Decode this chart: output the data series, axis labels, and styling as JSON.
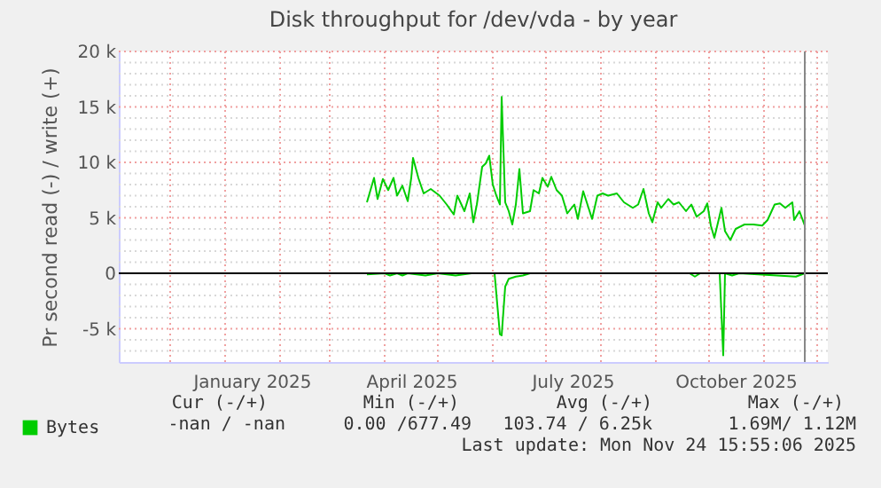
{
  "chart_data": {
    "type": "line",
    "title": "Disk throughput for /dev/vda - by year",
    "ylabel": "Pr second read (-) / write (+)",
    "xlim": [
      "2024-11-02",
      "2025-12-07"
    ],
    "xticks": [
      {
        "value": "2024-12-01",
        "label": null
      },
      {
        "value": "2025-01-01",
        "label": null
      },
      {
        "value": "2025-01-16",
        "label": "January 2025"
      },
      {
        "value": "2025-02-01",
        "label": null
      },
      {
        "value": "2025-03-01",
        "label": null
      },
      {
        "value": "2025-04-01",
        "label": null
      },
      {
        "value": "2025-04-16",
        "label": "April 2025"
      },
      {
        "value": "2025-05-01",
        "label": null
      },
      {
        "value": "2025-06-01",
        "label": null
      },
      {
        "value": "2025-07-01",
        "label": null
      },
      {
        "value": "2025-07-16",
        "label": "July 2025"
      },
      {
        "value": "2025-08-01",
        "label": null
      },
      {
        "value": "2025-09-01",
        "label": null
      },
      {
        "value": "2025-10-01",
        "label": null
      },
      {
        "value": "2025-10-16",
        "label": "October 2025"
      },
      {
        "value": "2025-11-01",
        "label": null
      },
      {
        "value": "2025-12-01",
        "label": null
      }
    ],
    "ylim": [
      -8000,
      20000
    ],
    "yticks": [
      {
        "value": -7000,
        "label": null
      },
      {
        "value": -6000,
        "label": null
      },
      {
        "value": -5000,
        "label": "-5 k"
      },
      {
        "value": -4000,
        "label": null
      },
      {
        "value": -3000,
        "label": null
      },
      {
        "value": -2000,
        "label": null
      },
      {
        "value": -1000,
        "label": null
      },
      {
        "value": 0,
        "label": "0"
      },
      {
        "value": 1000,
        "label": null
      },
      {
        "value": 2000,
        "label": null
      },
      {
        "value": 3000,
        "label": null
      },
      {
        "value": 4000,
        "label": null
      },
      {
        "value": 5000,
        "label": "5 k"
      },
      {
        "value": 6000,
        "label": null
      },
      {
        "value": 7000,
        "label": null
      },
      {
        "value": 8000,
        "label": null
      },
      {
        "value": 9000,
        "label": null
      },
      {
        "value": 10000,
        "label": "10 k"
      },
      {
        "value": 11000,
        "label": null
      },
      {
        "value": 12000,
        "label": null
      },
      {
        "value": 13000,
        "label": null
      },
      {
        "value": 14000,
        "label": null
      },
      {
        "value": 15000,
        "label": "15 k"
      },
      {
        "value": 16000,
        "label": null
      },
      {
        "value": 17000,
        "label": null
      },
      {
        "value": 18000,
        "label": null
      },
      {
        "value": 19000,
        "label": null
      },
      {
        "value": 20000,
        "label": "20 k"
      }
    ],
    "grid": true,
    "legend": "bottom left",
    "marker": "none",
    "line_style": "solid",
    "series": [
      {
        "name": "Bytes",
        "color": "#00cc00",
        "x": [
          "2025-03-22",
          "2025-03-26",
          "2025-03-28",
          "2025-03-31",
          "2025-04-03",
          "2025-04-06",
          "2025-04-08",
          "2025-04-11",
          "2025-04-14",
          "2025-04-16",
          "2025-04-17",
          "2025-04-20",
          "2025-04-23",
          "2025-04-27",
          "2025-05-02",
          "2025-05-06",
          "2025-05-10",
          "2025-05-12",
          "2025-05-16",
          "2025-05-19",
          "2025-05-21",
          "2025-05-23",
          "2025-05-26",
          "2025-05-28",
          "2025-05-30",
          "2025-06-01",
          "2025-06-03",
          "2025-06-05",
          "2025-06-06",
          "2025-06-08",
          "2025-06-10",
          "2025-06-12",
          "2025-06-14",
          "2025-06-16",
          "2025-06-18",
          "2025-06-22",
          "2025-06-24",
          "2025-06-27",
          "2025-06-29",
          "2025-07-02",
          "2025-07-04",
          "2025-07-07",
          "2025-07-10",
          "2025-07-13",
          "2025-07-17",
          "2025-07-19",
          "2025-07-22",
          "2025-07-24",
          "2025-07-27",
          "2025-07-30",
          "2025-08-02",
          "2025-08-05",
          "2025-08-10",
          "2025-08-14",
          "2025-08-19",
          "2025-08-22",
          "2025-08-25",
          "2025-08-28",
          "2025-08-30",
          "2025-09-02",
          "2025-09-04",
          "2025-09-08",
          "2025-09-11",
          "2025-09-14",
          "2025-09-18",
          "2025-09-21",
          "2025-09-24",
          "2025-09-28",
          "2025-09-30",
          "2025-10-02",
          "2025-10-04",
          "2025-10-08",
          "2025-10-10",
          "2025-10-13",
          "2025-10-16",
          "2025-10-21",
          "2025-10-26",
          "2025-10-31",
          "2025-11-03",
          "2025-11-07",
          "2025-11-10",
          "2025-11-13",
          "2025-11-17",
          "2025-11-18",
          "2025-11-21",
          "2025-11-24"
        ],
        "values": [
          6400,
          8600,
          6700,
          8500,
          7500,
          8600,
          7000,
          7900,
          6500,
          8600,
          10400,
          8600,
          7200,
          7600,
          7000,
          6200,
          5300,
          7000,
          5600,
          7200,
          4600,
          6200,
          9600,
          9900,
          10600,
          8000,
          7000,
          6200,
          15900,
          6400,
          5600,
          4400,
          6200,
          9400,
          5400,
          5600,
          7500,
          7200,
          8600,
          7800,
          8700,
          7500,
          7000,
          5400,
          6200,
          4900,
          7400,
          6400,
          4900,
          7000,
          7200,
          7000,
          7200,
          6400,
          5900,
          6200,
          7600,
          5400,
          4600,
          6400,
          5900,
          6700,
          6200,
          6400,
          5600,
          6200,
          5100,
          5600,
          6300,
          4300,
          3200,
          5900,
          3800,
          3000,
          4000,
          4400,
          4400,
          4300,
          4800,
          6200,
          6300,
          5900,
          6400,
          4800,
          5600,
          4300
        ]
      },
      {
        "color": "#00cc00",
        "x": [
          "2025-03-22",
          "2025-04-01",
          "2025-04-04",
          "2025-04-08",
          "2025-04-11",
          "2025-04-14",
          "2025-04-24",
          "2025-05-01",
          "2025-05-11",
          "2025-05-20",
          "2025-06-02",
          "2025-06-05",
          "2025-06-06",
          "2025-06-08",
          "2025-06-10",
          "2025-06-14",
          "2025-06-18",
          "2025-06-22",
          "2025-09-20",
          "2025-09-23",
          "2025-09-26",
          "2025-10-07",
          "2025-10-09",
          "2025-10-10",
          "2025-10-14",
          "2025-10-18",
          "2025-11-19",
          "2025-11-24"
        ],
        "values": [
          -100,
          0,
          -200,
          0,
          -200,
          0,
          -200,
          0,
          -200,
          0,
          0,
          -5500,
          -5600,
          -1200,
          -500,
          -300,
          -200,
          0,
          0,
          -300,
          0,
          0,
          -7400,
          0,
          -200,
          0,
          -300,
          0
        ]
      }
    ],
    "ref_lines": [
      {
        "axis": "y",
        "value": 0,
        "color": "#000000"
      },
      {
        "axis": "x",
        "value": "2025-11-24",
        "color": "#888888"
      }
    ],
    "annotations": [
      "Cur (-/+)",
      "Min (-/+)",
      "Avg (-/+)",
      "Max (-/+)",
      "-nan /  -nan",
      "0.00 /677.49",
      "103.74 /  6.25k",
      "1.69M/  1.12M",
      "Last update: Mon Nov 24 15:55:06 2025"
    ]
  }
}
